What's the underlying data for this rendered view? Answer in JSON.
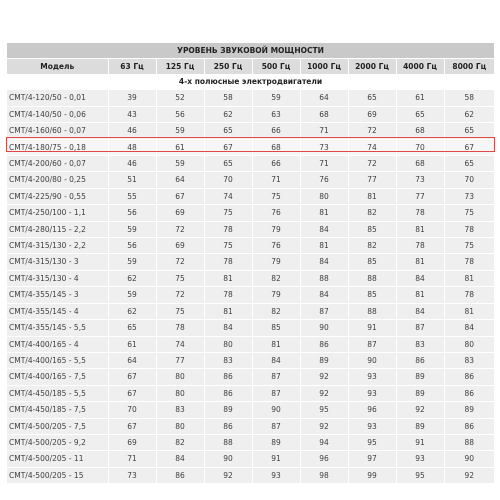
{
  "table": {
    "title": "УРОВЕНЬ ЗВУКОВОЙ МОЩНОСТИ",
    "headers": [
      "Модель",
      "63 Гц",
      "125 Гц",
      "250 Гц",
      "500 Гц",
      "1000 Гц",
      "2000 Гц",
      "4000 Гц",
      "8000 Гц"
    ],
    "section": "4-х полюсные электродвигатели",
    "highlighted_row": "CMT/4-180/75 - 0,18",
    "rows": [
      [
        "CMT/4-120/50 - 0,01",
        "39",
        "52",
        "58",
        "59",
        "64",
        "65",
        "61",
        "58"
      ],
      [
        "CMT/4-140/50 - 0,06",
        "43",
        "56",
        "62",
        "63",
        "68",
        "69",
        "65",
        "62"
      ],
      [
        "CMT/4-160/60 - 0,07",
        "46",
        "59",
        "65",
        "66",
        "71",
        "72",
        "68",
        "65"
      ],
      [
        "CMT/4-180/75 - 0,18",
        "48",
        "61",
        "67",
        "68",
        "73",
        "74",
        "70",
        "67"
      ],
      [
        "CMT/4-200/60 - 0,07",
        "46",
        "59",
        "65",
        "66",
        "71",
        "72",
        "68",
        "65"
      ],
      [
        "CMT/4-200/80 - 0,25",
        "51",
        "64",
        "70",
        "71",
        "76",
        "77",
        "73",
        "70"
      ],
      [
        "CMT/4-225/90 - 0,55",
        "55",
        "67",
        "74",
        "75",
        "80",
        "81",
        "77",
        "73"
      ],
      [
        "CMT/4-250/100 - 1,1",
        "56",
        "69",
        "75",
        "76",
        "81",
        "82",
        "78",
        "75"
      ],
      [
        "CMT/4-280/115 - 2,2",
        "59",
        "72",
        "78",
        "79",
        "84",
        "85",
        "81",
        "78"
      ],
      [
        "CMT/4-315/130 - 2,2",
        "56",
        "69",
        "75",
        "76",
        "81",
        "82",
        "78",
        "75"
      ],
      [
        "CMT/4-315/130 - 3",
        "59",
        "72",
        "78",
        "79",
        "84",
        "85",
        "81",
        "78"
      ],
      [
        "CMT/4-315/130 - 4",
        "62",
        "75",
        "81",
        "82",
        "88",
        "88",
        "84",
        "81"
      ],
      [
        "CMT/4-355/145 - 3",
        "59",
        "72",
        "78",
        "79",
        "84",
        "85",
        "81",
        "78"
      ],
      [
        "CMT/4-355/145 - 4",
        "62",
        "75",
        "81",
        "82",
        "87",
        "88",
        "84",
        "81"
      ],
      [
        "CMT/4-355/145 - 5,5",
        "65",
        "78",
        "84",
        "85",
        "90",
        "91",
        "87",
        "84"
      ],
      [
        "CMT/4-400/165 - 4",
        "61",
        "74",
        "80",
        "81",
        "86",
        "87",
        "83",
        "80"
      ],
      [
        "CMT/4-400/165 - 5,5",
        "64",
        "77",
        "83",
        "84",
        "89",
        "90",
        "86",
        "83"
      ],
      [
        "CMT/4-400/165 - 7,5",
        "67",
        "80",
        "86",
        "87",
        "92",
        "93",
        "89",
        "86"
      ],
      [
        "CMT/4-450/185 - 5,5",
        "67",
        "80",
        "86",
        "87",
        "92",
        "93",
        "89",
        "86"
      ],
      [
        "CMT/4-450/185 - 7,5",
        "70",
        "83",
        "89",
        "90",
        "95",
        "96",
        "92",
        "89"
      ],
      [
        "CMT/4-500/205 - 7,5",
        "67",
        "80",
        "86",
        "87",
        "92",
        "93",
        "89",
        "86"
      ],
      [
        "CMT/4-500/205 - 9,2",
        "69",
        "82",
        "88",
        "89",
        "94",
        "95",
        "91",
        "88"
      ],
      [
        "CMT/4-500/205 - 11",
        "71",
        "84",
        "90",
        "91",
        "96",
        "97",
        "93",
        "90"
      ],
      [
        "CMT/4-500/205 - 15",
        "73",
        "86",
        "92",
        "93",
        "98",
        "99",
        "95",
        "92"
      ]
    ]
  },
  "colors": {
    "title_bg": "#c9c9c9",
    "header_bg": "#dcdcdc",
    "row_bg": "#efefef",
    "highlight_border": "#e04848"
  }
}
